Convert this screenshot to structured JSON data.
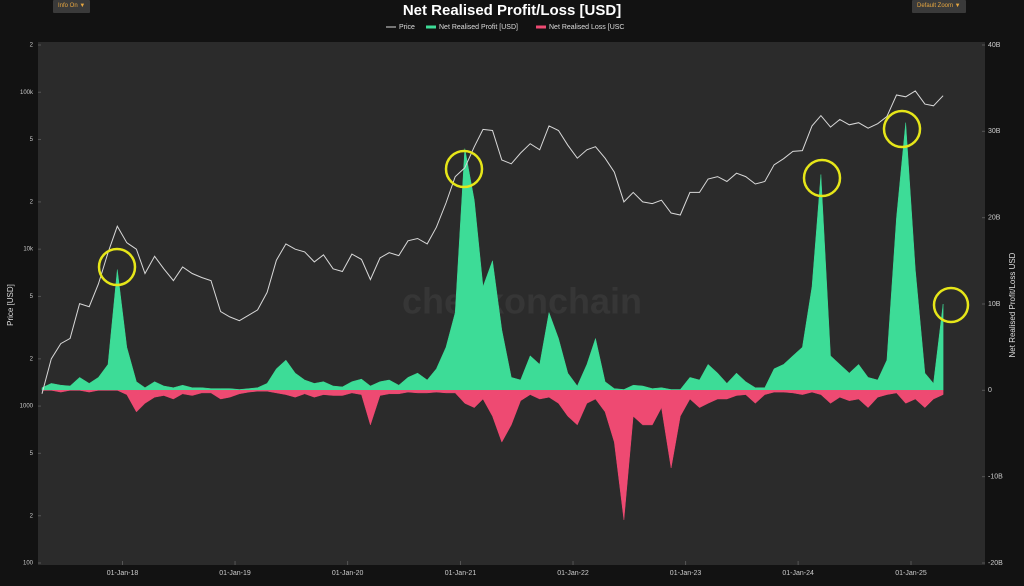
{
  "controls": {
    "info": "Info On",
    "zoom": "Default Zoom"
  },
  "chart_data": {
    "type": "line",
    "title": "Net Realised Profit/Loss [USD]",
    "watermark": "checkonchain",
    "ylabel": "Price [USD]",
    "y2label": "Net Realised Profit/Loss USD",
    "log_y": true,
    "grid": false,
    "legend": "top",
    "xlim": [
      "2017-04-02",
      "2025-08-29"
    ],
    "xticks": [
      {
        "value": "2018-01-01",
        "label": "01-Jan-18"
      },
      {
        "value": "2019-01-01",
        "label": "01-Jan-19"
      },
      {
        "value": "2020-01-01",
        "label": "01-Jan-20"
      },
      {
        "value": "2021-01-01",
        "label": "01-Jan-21"
      },
      {
        "value": "2022-01-01",
        "label": "01-Jan-22"
      },
      {
        "value": "2023-01-01",
        "label": "01-Jan-23"
      },
      {
        "value": "2024-01-01",
        "label": "01-Jan-24"
      },
      {
        "value": "2025-01-01",
        "label": "01-Jan-25"
      }
    ],
    "ylim": [
      100,
      200000
    ],
    "yticks": [
      100,
      {
        "value": 200,
        "label": "2"
      },
      {
        "value": 500,
        "label": "5"
      },
      1000,
      {
        "value": 2000,
        "label": "2"
      },
      {
        "value": 5000,
        "label": "5"
      },
      {
        "value": 10000,
        "label": "10k"
      },
      {
        "value": 20000,
        "label": "2"
      },
      {
        "value": 50000,
        "label": "5"
      },
      {
        "value": 100000,
        "label": "100k"
      },
      {
        "value": 200000,
        "label": "2"
      }
    ],
    "y2lim": [
      -20000000000.0,
      40000000000.0
    ],
    "y2ticks": [
      {
        "value": -20000000000.0,
        "label": "-20B"
      },
      {
        "value": -10000000000.0,
        "label": "-10B"
      },
      0,
      {
        "value": 10000000000.0,
        "label": "10B"
      },
      {
        "value": 20000000000.0,
        "label": "20B"
      },
      {
        "value": 30000000000.0,
        "label": "30B"
      },
      {
        "value": 40000000000.0,
        "label": "40B"
      }
    ],
    "x": [
      "2017-04-15",
      "2017-05-15",
      "2017-06-15",
      "2017-07-15",
      "2017-08-15",
      "2017-09-15",
      "2017-10-15",
      "2017-11-15",
      "2017-12-15",
      "2018-01-15",
      "2018-02-15",
      "2018-03-15",
      "2018-04-15",
      "2018-05-15",
      "2018-06-15",
      "2018-07-15",
      "2018-08-15",
      "2018-09-15",
      "2018-10-15",
      "2018-11-15",
      "2018-12-15",
      "2019-01-15",
      "2019-02-15",
      "2019-03-15",
      "2019-04-15",
      "2019-05-15",
      "2019-06-15",
      "2019-07-15",
      "2019-08-15",
      "2019-09-15",
      "2019-10-15",
      "2019-11-15",
      "2019-12-15",
      "2020-01-15",
      "2020-02-15",
      "2020-03-15",
      "2020-04-15",
      "2020-05-15",
      "2020-06-15",
      "2020-07-15",
      "2020-08-15",
      "2020-09-15",
      "2020-10-15",
      "2020-11-15",
      "2020-12-15",
      "2021-01-15",
      "2021-02-15",
      "2021-03-15",
      "2021-04-15",
      "2021-05-15",
      "2021-06-15",
      "2021-07-15",
      "2021-08-15",
      "2021-09-15",
      "2021-10-15",
      "2021-11-15",
      "2021-12-15",
      "2022-01-15",
      "2022-02-15",
      "2022-03-15",
      "2022-04-15",
      "2022-05-15",
      "2022-06-15",
      "2022-07-15",
      "2022-08-15",
      "2022-09-15",
      "2022-10-15",
      "2022-11-15",
      "2022-12-15",
      "2023-01-15",
      "2023-02-15",
      "2023-03-15",
      "2023-04-15",
      "2023-05-15",
      "2023-06-15",
      "2023-07-15",
      "2023-08-15",
      "2023-09-15",
      "2023-10-15",
      "2023-11-15",
      "2023-12-15",
      "2024-01-15",
      "2024-02-15",
      "2024-03-15",
      "2024-04-15",
      "2024-05-15",
      "2024-06-15",
      "2024-07-15",
      "2024-08-15",
      "2024-09-15",
      "2024-10-15",
      "2024-11-15",
      "2024-12-15",
      "2025-01-15",
      "2025-02-15",
      "2025-03-15",
      "2025-04-15"
    ],
    "series": [
      {
        "name": "Price",
        "type": "line",
        "axis": "y",
        "color": "#d8d8d8",
        "values": [
          1200,
          2000,
          2500,
          2700,
          4500,
          4300,
          6000,
          9500,
          14000,
          11000,
          10000,
          7000,
          9000,
          7500,
          6300,
          7700,
          7000,
          6600,
          6300,
          4000,
          3700,
          3500,
          3800,
          4100,
          5300,
          8500,
          10800,
          10000,
          9600,
          8300,
          9200,
          7500,
          7200,
          9300,
          8600,
          6400,
          8800,
          9500,
          9100,
          11300,
          11700,
          10800,
          13800,
          19700,
          29000,
          33000,
          45000,
          58000,
          57000,
          37000,
          35000,
          41000,
          47000,
          43000,
          61000,
          57000,
          46000,
          38000,
          43000,
          45000,
          38000,
          31000,
          20000,
          23000,
          20000,
          19500,
          20500,
          17000,
          16500,
          23000,
          23000,
          28000,
          29000,
          27000,
          30500,
          29000,
          26000,
          27000,
          34500,
          37700,
          42000,
          42500,
          61000,
          71000,
          60000,
          67000,
          62000,
          64000,
          59000,
          63000,
          70000,
          96000,
          93500,
          102000,
          84000,
          82000,
          95000
        ]
      },
      {
        "name": "Net Realised Profit [USD]",
        "type": "area",
        "axis": "y2",
        "color": "#3ddc97",
        "values": [
          300000000.0,
          800000000.0,
          600000000.0,
          500000000.0,
          1500000000.0,
          800000000.0,
          1500000000.0,
          3000000000.0,
          14000000000.0,
          5000000000.0,
          1000000000.0,
          300000000.0,
          1000000000.0,
          500000000.0,
          300000000.0,
          600000000.0,
          300000000.0,
          300000000.0,
          200000000.0,
          200000000.0,
          200000000.0,
          100000000.0,
          200000000.0,
          300000000.0,
          800000000.0,
          2500000000.0,
          3500000000.0,
          2000000000.0,
          1200000000.0,
          800000000.0,
          1000000000.0,
          500000000.0,
          400000000.0,
          1000000000.0,
          1300000000.0,
          500000000.0,
          1000000000.0,
          1200000000.0,
          600000000.0,
          1500000000.0,
          2000000000.0,
          1200000000.0,
          2500000000.0,
          5000000000.0,
          9000000000.0,
          28000000000.0,
          22000000000.0,
          12000000000.0,
          15000000000.0,
          7000000000.0,
          1500000000.0,
          1200000000.0,
          4000000000.0,
          3000000000.0,
          9000000000.0,
          6000000000.0,
          2000000000.0,
          500000000.0,
          3000000000.0,
          6000000000.0,
          1000000000.0,
          200000000.0,
          100000000.0,
          600000000.0,
          500000000.0,
          200000000.0,
          300000000.0,
          100000000.0,
          100000000.0,
          1500000000.0,
          1200000000.0,
          3000000000.0,
          2000000000.0,
          800000000.0,
          2000000000.0,
          1000000000.0,
          300000000.0,
          300000000.0,
          2500000000.0,
          3000000000.0,
          4000000000.0,
          5000000000.0,
          12000000000.0,
          25000000000.0,
          4000000000.0,
          3000000000.0,
          2000000000.0,
          3000000000.0,
          1500000000.0,
          1200000000.0,
          3500000000.0,
          20000000000.0,
          31000000000.0,
          14000000000.0,
          2000000000.0,
          800000000.0,
          10000000000.0
        ]
      },
      {
        "name": "Net Realised Loss [USC",
        "type": "area",
        "axis": "y2",
        "color": "#ee4a72",
        "values": [
          0,
          0,
          -200000000.0,
          0,
          0,
          -200000000.0,
          0,
          0,
          0,
          -500000000.0,
          -2500000000.0,
          -1500000000.0,
          -800000000.0,
          -600000000.0,
          -1000000000.0,
          -400000000.0,
          -600000000.0,
          -300000000.0,
          -300000000.0,
          -1000000000.0,
          -800000000.0,
          -400000000.0,
          -200000000.0,
          -100000000.0,
          -100000000.0,
          -300000000.0,
          -500000000.0,
          -800000000.0,
          -400000000.0,
          -800000000.0,
          -500000000.0,
          -600000000.0,
          -600000000.0,
          -300000000.0,
          -500000000.0,
          -4000000000.0,
          -600000000.0,
          -400000000.0,
          -400000000.0,
          -200000000.0,
          -300000000.0,
          -300000000.0,
          -200000000.0,
          -300000000.0,
          -300000000.0,
          -1500000000.0,
          -2000000000.0,
          -1000000000.0,
          -3000000000.0,
          -6000000000.0,
          -4000000000.0,
          -1200000000.0,
          -500000000.0,
          -1000000000.0,
          -800000000.0,
          -1500000000.0,
          -3000000000.0,
          -4000000000.0,
          -1500000000.0,
          -1000000000.0,
          -2500000000.0,
          -6000000000.0,
          -15000000000.0,
          -3000000000.0,
          -4000000000.0,
          -4000000000.0,
          -2000000000.0,
          -9000000000.0,
          -3000000000.0,
          -1000000000.0,
          -2000000000.0,
          -1500000000.0,
          -1000000000.0,
          -1000000000.0,
          -600000000.0,
          -500000000.0,
          -1500000000.0,
          -500000000.0,
          -200000000.0,
          -200000000.0,
          -300000000.0,
          -500000000.0,
          -200000000.0,
          -500000000.0,
          -1500000000.0,
          -800000000.0,
          -1200000000.0,
          -1000000000.0,
          -2000000000.0,
          -800000000.0,
          -500000000.0,
          -300000000.0,
          -1500000000.0,
          -1000000000.0,
          -2000000000.0,
          -1000000000.0,
          -500000000.0
        ]
      }
    ]
  }
}
